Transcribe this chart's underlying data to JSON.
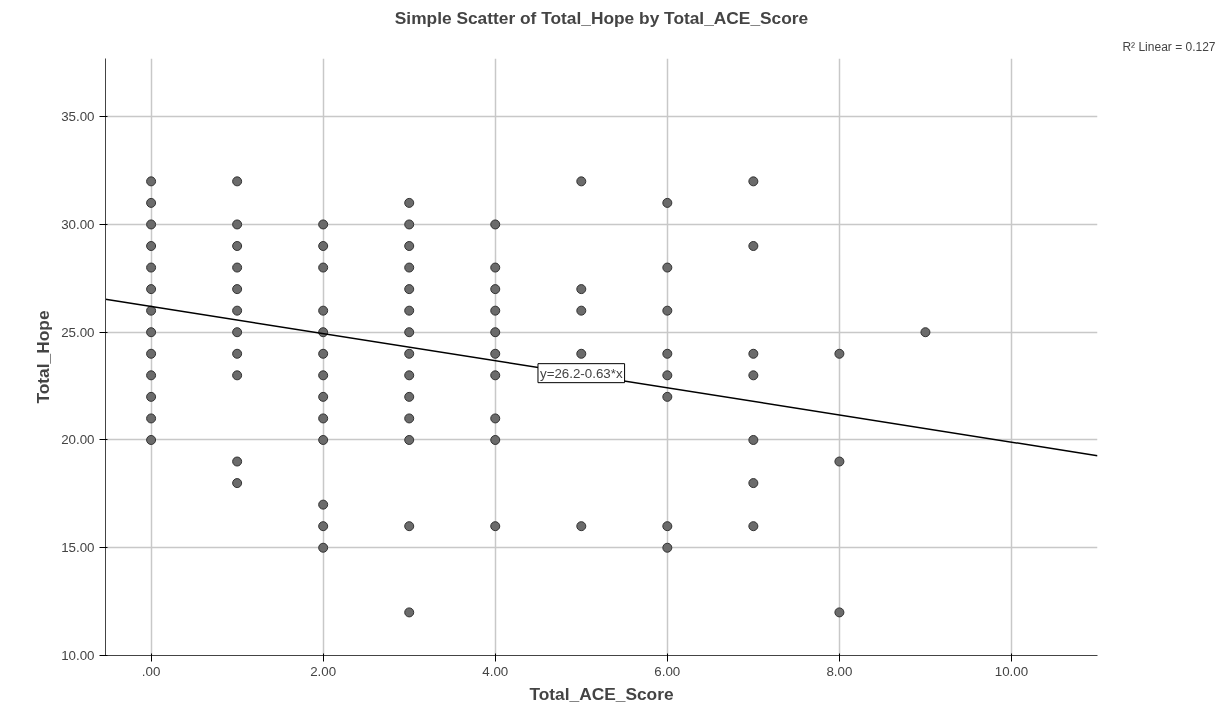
{
  "chart_data": {
    "type": "scatter",
    "title": "Simple Scatter of Total_Hope by Total_ACE_Score",
    "xlabel": "Total_ACE_Score",
    "ylabel": "Total_Hope",
    "xlim": [
      -0.53,
      11.0
    ],
    "ylim": [
      10,
      37.7
    ],
    "xticks": [
      {
        "value": 0,
        "label": ".00"
      },
      {
        "value": 2,
        "label": "2.00"
      },
      {
        "value": 4,
        "label": "4.00"
      },
      {
        "value": 6,
        "label": "6.00"
      },
      {
        "value": 8,
        "label": "8.00"
      },
      {
        "value": 10,
        "label": "10.00"
      }
    ],
    "yticks": [
      {
        "value": 10,
        "label": "10.00"
      },
      {
        "value": 15,
        "label": "15.00"
      },
      {
        "value": 20,
        "label": "20.00"
      },
      {
        "value": 25,
        "label": "25.00"
      },
      {
        "value": 30,
        "label": "30.00"
      },
      {
        "value": 35,
        "label": "35.00"
      }
    ],
    "grid": true,
    "marker": "circle",
    "series": [
      {
        "color": "#6b6b6b",
        "x": [
          0,
          0,
          0,
          0,
          0,
          0,
          0,
          0,
          0,
          0,
          0,
          0,
          0,
          1,
          1,
          1,
          1,
          1,
          1,
          1,
          1,
          1,
          1,
          1,
          2,
          2,
          2,
          2,
          2,
          2,
          2,
          2,
          2,
          2,
          2,
          2,
          2,
          3,
          3,
          3,
          3,
          3,
          3,
          3,
          3,
          3,
          3,
          3,
          3,
          3,
          3,
          4,
          4,
          4,
          4,
          4,
          4,
          4,
          4,
          4,
          4,
          5,
          5,
          5,
          5,
          5,
          6,
          6,
          6,
          6,
          6,
          6,
          6,
          6,
          7,
          7,
          7,
          7,
          7,
          7,
          7,
          8,
          8,
          8,
          9
        ],
        "values": [
          32,
          31,
          30,
          29,
          28,
          27,
          26,
          25,
          24,
          23,
          22,
          21,
          20,
          32,
          30,
          29,
          28,
          27,
          26,
          25,
          24,
          23,
          19,
          18,
          30,
          29,
          28,
          26,
          25,
          24,
          23,
          22,
          21,
          20,
          17,
          16,
          15,
          31,
          30,
          29,
          28,
          27,
          26,
          25,
          24,
          23,
          22,
          21,
          20,
          16,
          12,
          30,
          28,
          27,
          26,
          25,
          24,
          23,
          21,
          20,
          16,
          32,
          27,
          26,
          24,
          16,
          31,
          28,
          26,
          24,
          23,
          22,
          16,
          15,
          32,
          29,
          24,
          23,
          20,
          18,
          16,
          24,
          19,
          12,
          25
        ]
      },
      {
        "type": "line",
        "marker": "none",
        "color": "#000000",
        "x": [
          -0.53,
          11.0
        ],
        "values": [
          26.53,
          19.27
        ]
      }
    ],
    "annotations": [
      {
        "text": "y=26.2-0.63*x",
        "x": 5.0,
        "y": 23.1
      },
      "R² Linear = 0.127"
    ]
  }
}
